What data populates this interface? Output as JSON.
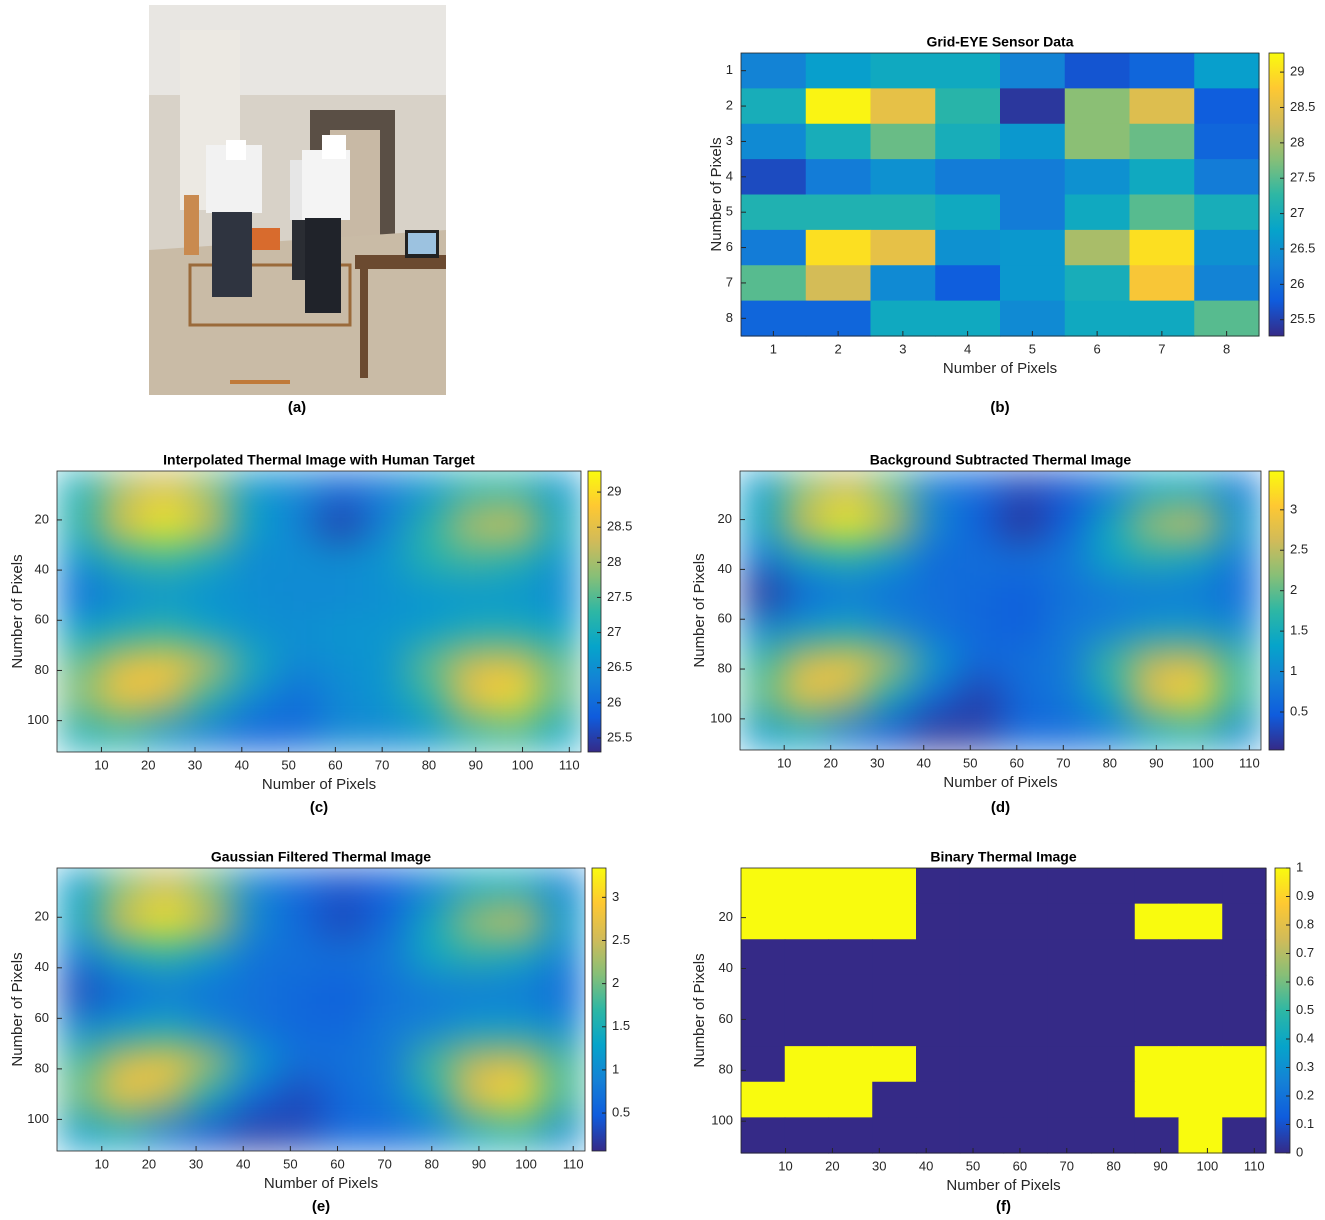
{
  "photo": {
    "caption": "(a)"
  },
  "colormap": [
    "#352a87",
    "#0f5cdd",
    "#1481d6",
    "#06a4ca",
    "#2eb7a4",
    "#87bf77",
    "#d1bb59",
    "#fec832",
    "#f9fb0e"
  ],
  "chart_data": [
    {
      "type": "heatmap",
      "title": "Grid-EYE Sensor Data",
      "caption": "(b)",
      "x_label": "Number of Pixels",
      "y_label": "Number of Pixels",
      "interpolation": "nearest",
      "y_reversed": true,
      "xlim": [
        0.5,
        8.5
      ],
      "ylim": [
        0.5,
        8.5
      ],
      "xticks": [
        1,
        2,
        3,
        4,
        5,
        6,
        7,
        8
      ],
      "yticks": [
        1,
        2,
        3,
        4,
        5,
        6,
        7,
        8
      ],
      "clim": [
        25.27,
        29.27
      ],
      "colorbar_ticks": [
        25.5,
        26,
        26.5,
        27,
        27.5,
        28,
        28.5,
        29
      ],
      "z": [
        [
          26.3,
          26.7,
          26.9,
          26.9,
          26.3,
          25.7,
          25.9,
          26.7
        ],
        [
          27.0,
          29.2,
          28.5,
          27.2,
          25.4,
          27.8,
          28.4,
          25.8
        ],
        [
          26.4,
          27.0,
          27.6,
          27.0,
          26.6,
          27.8,
          27.6,
          25.9
        ],
        [
          25.6,
          26.2,
          26.5,
          26.2,
          26.2,
          26.5,
          26.9,
          26.2
        ],
        [
          27.1,
          27.1,
          27.1,
          26.9,
          26.2,
          26.9,
          27.5,
          27.0
        ],
        [
          26.2,
          29.0,
          28.5,
          26.5,
          26.6,
          28.0,
          29.0,
          26.5
        ],
        [
          27.5,
          28.3,
          26.4,
          25.8,
          26.6,
          27.0,
          28.7,
          26.3
        ],
        [
          25.9,
          25.9,
          26.9,
          26.9,
          26.4,
          26.9,
          26.9,
          27.5
        ]
      ]
    },
    {
      "type": "heatmap",
      "title": "Interpolated Thermal Image with Human Target",
      "caption": "(c)",
      "x_label": "Number of Pixels",
      "y_label": "Number of Pixels",
      "interpolation": "smooth",
      "y_reversed": true,
      "xlim": [
        0.5,
        112.5
      ],
      "ylim": [
        0.5,
        112.5
      ],
      "xticks": [
        10,
        20,
        30,
        40,
        50,
        60,
        70,
        80,
        90,
        100,
        110
      ],
      "yticks": [
        20,
        40,
        60,
        80,
        100
      ],
      "clim": [
        25.3,
        29.3
      ],
      "colorbar_ticks": [
        25.5,
        26,
        26.5,
        27,
        27.5,
        28,
        28.5,
        29
      ],
      "z": [
        [
          27.0,
          28.0,
          28.4,
          27.8,
          26.6,
          26.4,
          26.0,
          26.2,
          26.6,
          27.2,
          27.2,
          26.6
        ],
        [
          27.2,
          28.6,
          29.2,
          28.4,
          26.8,
          26.3,
          25.5,
          26.3,
          27.2,
          28.2,
          28.5,
          27.0
        ],
        [
          26.6,
          27.2,
          27.4,
          27.0,
          26.4,
          26.5,
          26.5,
          26.6,
          27.2,
          27.4,
          27.2,
          26.6
        ],
        [
          26.0,
          26.4,
          26.6,
          26.5,
          26.5,
          26.4,
          26.4,
          26.5,
          26.6,
          26.6,
          26.6,
          26.4
        ],
        [
          26.8,
          27.0,
          27.2,
          26.8,
          26.5,
          26.5,
          26.6,
          26.6,
          26.7,
          27.0,
          27.0,
          26.8
        ],
        [
          27.6,
          28.5,
          28.8,
          28.2,
          27.0,
          26.4,
          26.5,
          26.6,
          27.6,
          28.4,
          28.5,
          27.6
        ],
        [
          27.8,
          28.7,
          28.3,
          27.2,
          26.4,
          26.0,
          26.4,
          26.6,
          27.2,
          28.6,
          29.0,
          27.6
        ],
        [
          27.0,
          27.2,
          26.6,
          26.2,
          25.9,
          26.0,
          26.4,
          26.4,
          26.6,
          27.2,
          27.4,
          26.8
        ]
      ]
    },
    {
      "type": "heatmap",
      "title": "Background Subtracted Thermal Image",
      "caption": "(d)",
      "x_label": "Number of Pixels",
      "y_label": "Number of Pixels",
      "interpolation": "smooth",
      "y_reversed": true,
      "xlim": [
        0.5,
        112.5
      ],
      "ylim": [
        0.5,
        112.5
      ],
      "xticks": [
        10,
        20,
        30,
        40,
        50,
        60,
        70,
        80,
        90,
        100,
        110
      ],
      "yticks": [
        20,
        40,
        60,
        80,
        100
      ],
      "clim": [
        0.03,
        3.48
      ],
      "colorbar_ticks": [
        0.5,
        1,
        1.5,
        2,
        2.5,
        3
      ],
      "z": [
        [
          1.2,
          2.2,
          2.6,
          2.0,
          0.8,
          0.6,
          0.3,
          0.4,
          0.8,
          1.4,
          1.4,
          0.8
        ],
        [
          1.4,
          2.8,
          3.4,
          2.6,
          1.0,
          0.5,
          0.1,
          0.5,
          1.4,
          2.4,
          2.7,
          1.2
        ],
        [
          0.8,
          1.4,
          1.6,
          1.2,
          0.6,
          0.7,
          0.7,
          0.8,
          1.4,
          1.6,
          1.4,
          0.8
        ],
        [
          0.1,
          0.6,
          0.8,
          0.7,
          0.7,
          0.6,
          0.5,
          0.7,
          0.8,
          0.8,
          0.8,
          0.6
        ],
        [
          1.0,
          1.2,
          1.4,
          1.0,
          0.7,
          0.6,
          0.5,
          0.8,
          0.9,
          1.2,
          1.2,
          1.0
        ],
        [
          1.8,
          2.7,
          3.0,
          2.4,
          1.2,
          0.6,
          0.7,
          0.8,
          1.8,
          2.6,
          2.7,
          1.8
        ],
        [
          2.0,
          2.9,
          2.5,
          1.4,
          0.6,
          0.2,
          0.6,
          0.8,
          1.4,
          2.8,
          3.2,
          1.8
        ],
        [
          1.2,
          1.4,
          0.8,
          0.4,
          0.1,
          0.2,
          0.6,
          0.6,
          0.8,
          1.4,
          1.6,
          1.0
        ]
      ]
    },
    {
      "type": "heatmap",
      "title": "Gaussian Filtered Thermal Image",
      "caption": "(e)",
      "x_label": "Number of Pixels",
      "y_label": "Number of Pixels",
      "interpolation": "smooth",
      "y_reversed": true,
      "xlim": [
        0.5,
        112.5
      ],
      "ylim": [
        0.5,
        112.5
      ],
      "xticks": [
        10,
        20,
        30,
        40,
        50,
        60,
        70,
        80,
        90,
        100,
        110
      ],
      "yticks": [
        20,
        40,
        60,
        80,
        100
      ],
      "clim": [
        0.06,
        3.34
      ],
      "colorbar_ticks": [
        0.5,
        1,
        1.5,
        2,
        2.5,
        3
      ],
      "z": [
        [
          1.2,
          2.1,
          2.5,
          2.0,
          0.9,
          0.6,
          0.4,
          0.5,
          0.9,
          1.4,
          1.4,
          0.9
        ],
        [
          1.4,
          2.7,
          3.2,
          2.5,
          1.0,
          0.6,
          0.3,
          0.6,
          1.4,
          2.3,
          2.6,
          1.2
        ],
        [
          0.8,
          1.4,
          1.6,
          1.2,
          0.7,
          0.7,
          0.7,
          0.8,
          1.4,
          1.6,
          1.4,
          0.9
        ],
        [
          0.3,
          0.6,
          0.8,
          0.7,
          0.7,
          0.6,
          0.5,
          0.7,
          0.8,
          0.8,
          0.8,
          0.6
        ],
        [
          1.0,
          1.2,
          1.4,
          1.0,
          0.7,
          0.6,
          0.6,
          0.8,
          0.9,
          1.2,
          1.2,
          1.0
        ],
        [
          1.8,
          2.6,
          2.9,
          2.3,
          1.2,
          0.7,
          0.7,
          0.8,
          1.8,
          2.5,
          2.6,
          1.8
        ],
        [
          2.0,
          2.8,
          2.4,
          1.4,
          0.6,
          0.3,
          0.6,
          0.8,
          1.4,
          2.7,
          3.1,
          1.8
        ],
        [
          1.2,
          1.4,
          0.8,
          0.4,
          0.2,
          0.3,
          0.6,
          0.6,
          0.8,
          1.4,
          1.6,
          1.0
        ]
      ]
    },
    {
      "type": "heatmap",
      "title": "Binary Thermal Image",
      "caption": "(f)",
      "x_label": "Number of Pixels",
      "y_label": "Number of Pixels",
      "interpolation": "nearest",
      "y_reversed": true,
      "xlim": [
        0.5,
        112.5
      ],
      "ylim": [
        0.5,
        112.5
      ],
      "xticks": [
        10,
        20,
        30,
        40,
        50,
        60,
        70,
        80,
        90,
        100,
        110
      ],
      "yticks": [
        20,
        40,
        60,
        80,
        100
      ],
      "clim": [
        0,
        1
      ],
      "colorbar_ticks": [
        0,
        0.1,
        0.2,
        0.3,
        0.4,
        0.5,
        0.6,
        0.7,
        0.8,
        0.9,
        1
      ],
      "z": [
        [
          1,
          1,
          1,
          1,
          0,
          0,
          0,
          0,
          0,
          0,
          0,
          0
        ],
        [
          1,
          1,
          1,
          1,
          0,
          0,
          0,
          0,
          0,
          1,
          1,
          0
        ],
        [
          0,
          0,
          0,
          0,
          0,
          0,
          0,
          0,
          0,
          0,
          0,
          0
        ],
        [
          0,
          0,
          0,
          0,
          0,
          0,
          0,
          0,
          0,
          0,
          0,
          0
        ],
        [
          0,
          0,
          0,
          0,
          0,
          0,
          0,
          0,
          0,
          0,
          0,
          0
        ],
        [
          0,
          1,
          1,
          1,
          0,
          0,
          0,
          0,
          0,
          1,
          1,
          1
        ],
        [
          1,
          1,
          1,
          0,
          0,
          0,
          0,
          0,
          0,
          1,
          1,
          1
        ],
        [
          0,
          0,
          0,
          0,
          0,
          0,
          0,
          0,
          0,
          0,
          1,
          0
        ]
      ]
    }
  ]
}
